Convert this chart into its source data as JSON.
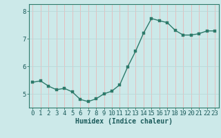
{
  "x": [
    0,
    1,
    2,
    3,
    4,
    5,
    6,
    7,
    8,
    9,
    10,
    11,
    12,
    13,
    14,
    15,
    16,
    17,
    18,
    19,
    20,
    21,
    22,
    23
  ],
  "y": [
    5.42,
    5.47,
    5.28,
    5.15,
    5.2,
    5.07,
    4.8,
    4.72,
    4.82,
    5.0,
    5.1,
    5.33,
    5.98,
    6.55,
    7.2,
    7.73,
    7.65,
    7.58,
    7.3,
    7.13,
    7.13,
    7.18,
    7.28,
    7.28
  ],
  "line_color": "#2d7a6a",
  "marker_color": "#2d7a6a",
  "bg_color": "#cce9e9",
  "vgrid_color": "#e8b8b8",
  "hgrid_color": "#b8d8d8",
  "spine_color": "#2d7a6a",
  "xlabel": "Humidex (Indice chaleur)",
  "ylim": [
    4.5,
    8.25
  ],
  "xlim": [
    -0.5,
    23.5
  ],
  "yticks": [
    5,
    6,
    7,
    8
  ],
  "xticks": [
    0,
    1,
    2,
    3,
    4,
    5,
    6,
    7,
    8,
    9,
    10,
    11,
    12,
    13,
    14,
    15,
    16,
    17,
    18,
    19,
    20,
    21,
    22,
    23
  ],
  "font_color": "#1a5a5a",
  "xlabel_fontsize": 7,
  "tick_fontsize": 6.5,
  "linewidth": 1.0,
  "markersize": 2.2
}
